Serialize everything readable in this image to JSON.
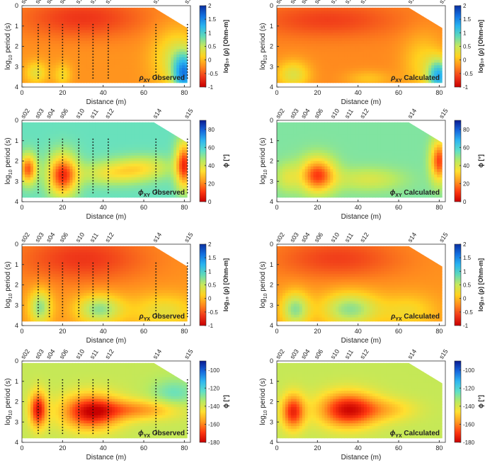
{
  "figure": {
    "x_label": "Distance (m)",
    "y_label": "log10 period (s)",
    "x_ticks": [
      0,
      20,
      40,
      60,
      80
    ],
    "y_ticks": [
      0,
      1,
      2,
      3,
      4
    ],
    "x_range": [
      0,
      83
    ],
    "y_range": [
      0,
      4
    ],
    "stations": [
      {
        "name": "s02",
        "x": 1
      },
      {
        "name": "s03",
        "x": 8
      },
      {
        "name": "s04",
        "x": 13.5
      },
      {
        "name": "s06",
        "x": 20
      },
      {
        "name": "s10",
        "x": 28
      },
      {
        "name": "s11",
        "x": 35
      },
      {
        "name": "s12",
        "x": 42.5
      },
      {
        "name": "s14",
        "x": 66
      },
      {
        "name": "s15",
        "x": 81.5
      }
    ],
    "observed_stations": [
      8,
      13.5,
      20,
      28,
      35,
      42.5,
      66,
      81.5
    ],
    "coverage_top": [
      [
        0,
        0.1
      ],
      [
        65,
        0.1
      ],
      [
        81.5,
        1.1
      ]
    ],
    "coverage_bottom": 3.8,
    "colors": {
      "rho": [
        "#c80000",
        "#f03a1a",
        "#ff8a1e",
        "#ffd21e",
        "#c8e85a",
        "#5fd9b8",
        "#28b4f0",
        "#1270e0",
        "#0a2fa0"
      ],
      "phi_xy": [
        "#c80000",
        "#ff3a10",
        "#ff9a20",
        "#ffe030",
        "#b9ea60",
        "#5fe0c8",
        "#2fb6f0",
        "#1666dc",
        "#0a1a90"
      ],
      "phi_yx": [
        "#c80000",
        "#ff3a10",
        "#ff9a20",
        "#ffe030",
        "#b9ea60",
        "#5fe0c8",
        "#2fb6f0",
        "#1666dc",
        "#0a1a90"
      ]
    }
  },
  "chart_data": [
    {
      "type": "heatmap",
      "id": "rho_xy_obs",
      "label_sym": "ρ",
      "label_sub": "XY",
      "label_text": "Observed",
      "xlabel": "Distance (m)",
      "ylabel": "log10 period (s)",
      "colorbar_title": "log₁₀ (ρ) [Ohm-m]",
      "colorbar_ticks": [
        -1,
        -0.5,
        0,
        0.5,
        1,
        1.5,
        2
      ],
      "colorbar_tick_labels": [
        "-1",
        "-0.5",
        "0",
        "0.5",
        "1",
        "1.5",
        "2"
      ],
      "clim": [
        -1,
        2
      ],
      "cmap": "rho",
      "base": -0.2,
      "blobs": [
        {
          "x": 30,
          "y": 0.6,
          "sx": 22,
          "sy": 0.7,
          "a": -0.45
        },
        {
          "x": 80,
          "y": 3.4,
          "sx": 4,
          "sy": 0.7,
          "a": 1.4
        },
        {
          "x": 7,
          "y": 3.3,
          "sx": 4,
          "sy": 0.4,
          "a": 0.5
        },
        {
          "x": 20,
          "y": 3.4,
          "sx": 3,
          "sy": 0.4,
          "a": 0.4
        },
        {
          "x": 76,
          "y": 2.6,
          "sx": 8,
          "sy": 1.0,
          "a": 0.6
        }
      ]
    },
    {
      "type": "heatmap",
      "id": "rho_xy_calc",
      "label_sym": "ρ",
      "label_sub": "XY",
      "label_text": "Calculated",
      "xlabel": "Distance (m)",
      "ylabel": "log10 period (s)",
      "colorbar_title": "log₁₀ (ρ) [Ohm-m]",
      "colorbar_ticks": [
        -1,
        -0.5,
        0,
        0.5,
        1,
        1.5,
        2
      ],
      "colorbar_tick_labels": [
        "-1",
        "-0.5",
        "0",
        "0.5",
        "1",
        "1.5",
        "2"
      ],
      "clim": [
        -1,
        2
      ],
      "cmap": "rho",
      "base": -0.25,
      "blobs": [
        {
          "x": 25,
          "y": 0.7,
          "sx": 25,
          "sy": 0.6,
          "a": -0.35
        },
        {
          "x": 80,
          "y": 3.5,
          "sx": 4,
          "sy": 0.6,
          "a": 1.4
        },
        {
          "x": 8,
          "y": 3.4,
          "sx": 6,
          "sy": 0.5,
          "a": 0.6
        },
        {
          "x": 45,
          "y": 3.6,
          "sx": 8,
          "sy": 0.3,
          "a": 0.3
        },
        {
          "x": 72,
          "y": 2.8,
          "sx": 7,
          "sy": 1.0,
          "a": 0.4
        }
      ]
    },
    {
      "type": "heatmap",
      "id": "phi_xy_obs",
      "label_sym": "ϕ",
      "label_sub": "XY",
      "label_text": "Observed",
      "xlabel": "Distance (m)",
      "ylabel": "log10 period (s)",
      "colorbar_title": "ϕ [°]",
      "colorbar_ticks": [
        0,
        20,
        40,
        60,
        80
      ],
      "colorbar_tick_labels": [
        "0",
        "20",
        "40",
        "60",
        "80"
      ],
      "clim": [
        0,
        90
      ],
      "cmap": "phi_xy",
      "base": 55,
      "blobs": [
        {
          "x": 20,
          "y": 2.7,
          "sx": 5,
          "sy": 0.7,
          "a": -45
        },
        {
          "x": 3,
          "y": 2.4,
          "sx": 3,
          "sy": 0.5,
          "a": -40
        },
        {
          "x": 80,
          "y": 2.2,
          "sx": 3,
          "sy": 0.8,
          "a": -45
        },
        {
          "x": 45,
          "y": 2.6,
          "sx": 12,
          "sy": 0.4,
          "a": -18
        },
        {
          "x": 60,
          "y": 2.3,
          "sx": 10,
          "sy": 0.4,
          "a": -15
        }
      ]
    },
    {
      "type": "heatmap",
      "id": "phi_xy_calc",
      "label_sym": "ϕ",
      "label_sub": "XY",
      "label_text": "Calculated",
      "xlabel": "Distance (m)",
      "ylabel": "log10 period (s)",
      "colorbar_title": "ϕ [°]",
      "colorbar_ticks": [
        0,
        20,
        40,
        60,
        80
      ],
      "colorbar_tick_labels": [
        "0",
        "20",
        "40",
        "60",
        "80"
      ],
      "clim": [
        0,
        90
      ],
      "cmap": "phi_xy",
      "base": 52,
      "blobs": [
        {
          "x": 20,
          "y": 2.7,
          "sx": 6,
          "sy": 0.6,
          "a": -40
        },
        {
          "x": 80,
          "y": 2.0,
          "sx": 3,
          "sy": 0.7,
          "a": -40
        },
        {
          "x": 45,
          "y": 2.9,
          "sx": 12,
          "sy": 0.4,
          "a": -12
        },
        {
          "x": 5,
          "y": 2.8,
          "sx": 4,
          "sy": 0.5,
          "a": -12
        }
      ]
    },
    {
      "type": "heatmap",
      "id": "rho_yx_obs",
      "label_sym": "ρ",
      "label_sub": "YX",
      "label_text": "Observed",
      "xlabel": "Distance (m)",
      "ylabel": "log10 period (s)",
      "colorbar_title": "log₁₀ (ρ) [Ohm-m]",
      "colorbar_ticks": [
        -1,
        -0.5,
        0,
        0.5,
        1,
        1.5,
        2
      ],
      "colorbar_tick_labels": [
        "-1",
        "-0.5",
        "0",
        "0.5",
        "1",
        "1.5",
        "2"
      ],
      "clim": [
        -1,
        2
      ],
      "cmap": "rho",
      "base": -0.2,
      "blobs": [
        {
          "x": 30,
          "y": 0.7,
          "sx": 22,
          "sy": 0.8,
          "a": -0.45
        },
        {
          "x": 38,
          "y": 3.2,
          "sx": 8,
          "sy": 0.5,
          "a": 0.9
        },
        {
          "x": 9,
          "y": 3.1,
          "sx": 4,
          "sy": 0.6,
          "a": 0.9
        },
        {
          "x": 70,
          "y": 3.3,
          "sx": 12,
          "sy": 0.6,
          "a": 0.5
        }
      ]
    },
    {
      "type": "heatmap",
      "id": "rho_yx_calc",
      "label_sym": "ρ",
      "label_sub": "YX",
      "label_text": "Calculated",
      "xlabel": "Distance (m)",
      "ylabel": "log10 period (s)",
      "colorbar_title": "log₁₀ (ρ) [Ohm-m]",
      "colorbar_ticks": [
        -1,
        -0.5,
        0,
        0.5,
        1,
        1.5,
        2
      ],
      "colorbar_tick_labels": [
        "-1",
        "-0.5",
        "0",
        "0.5",
        "1",
        "1.5",
        "2"
      ],
      "clim": [
        -1,
        2
      ],
      "cmap": "rho",
      "base": -0.2,
      "blobs": [
        {
          "x": 30,
          "y": 0.7,
          "sx": 22,
          "sy": 0.7,
          "a": -0.4
        },
        {
          "x": 36,
          "y": 3.2,
          "sx": 10,
          "sy": 0.6,
          "a": 0.9
        },
        {
          "x": 9,
          "y": 3.2,
          "sx": 5,
          "sy": 0.6,
          "a": 0.9
        },
        {
          "x": 65,
          "y": 3.3,
          "sx": 10,
          "sy": 0.6,
          "a": 0.4
        }
      ]
    },
    {
      "type": "heatmap",
      "id": "phi_yx_obs",
      "label_sym": "ϕ",
      "label_sub": "YX",
      "label_text": "Observed",
      "xlabel": "Distance (m)",
      "ylabel": "log10 period (s)",
      "colorbar_title": "ϕ [°]",
      "colorbar_ticks": [
        -180,
        -160,
        -140,
        -120,
        -100
      ],
      "colorbar_tick_labels": [
        "-180",
        "-160",
        "-140",
        "-120",
        "-100"
      ],
      "clim": [
        -180,
        -90
      ],
      "cmap": "phi_yx",
      "base": -137,
      "blobs": [
        {
          "x": 34,
          "y": 2.5,
          "sx": 10,
          "sy": 0.6,
          "a": -40
        },
        {
          "x": 8,
          "y": 2.4,
          "sx": 3,
          "sy": 0.6,
          "a": -38
        },
        {
          "x": 58,
          "y": 2.4,
          "sx": 14,
          "sy": 0.35,
          "a": -20
        },
        {
          "x": 75,
          "y": 1.6,
          "sx": 8,
          "sy": 0.5,
          "a": 12
        }
      ]
    },
    {
      "type": "heatmap",
      "id": "phi_yx_calc",
      "label_sym": "ϕ",
      "label_sub": "YX",
      "label_text": "Calculated",
      "xlabel": "Distance (m)",
      "ylabel": "log10 period (s)",
      "colorbar_title": "ϕ [°]",
      "colorbar_ticks": [
        -180,
        -160,
        -140,
        -120,
        -100
      ],
      "colorbar_tick_labels": [
        "-180",
        "-160",
        "-140",
        "-120",
        "-100"
      ],
      "clim": [
        -180,
        -90
      ],
      "cmap": "phi_yx",
      "base": -137,
      "blobs": [
        {
          "x": 35,
          "y": 2.4,
          "sx": 10,
          "sy": 0.6,
          "a": -40
        },
        {
          "x": 8,
          "y": 2.5,
          "sx": 4,
          "sy": 0.6,
          "a": -35
        },
        {
          "x": 55,
          "y": 2.4,
          "sx": 10,
          "sy": 0.4,
          "a": -12
        }
      ]
    }
  ]
}
